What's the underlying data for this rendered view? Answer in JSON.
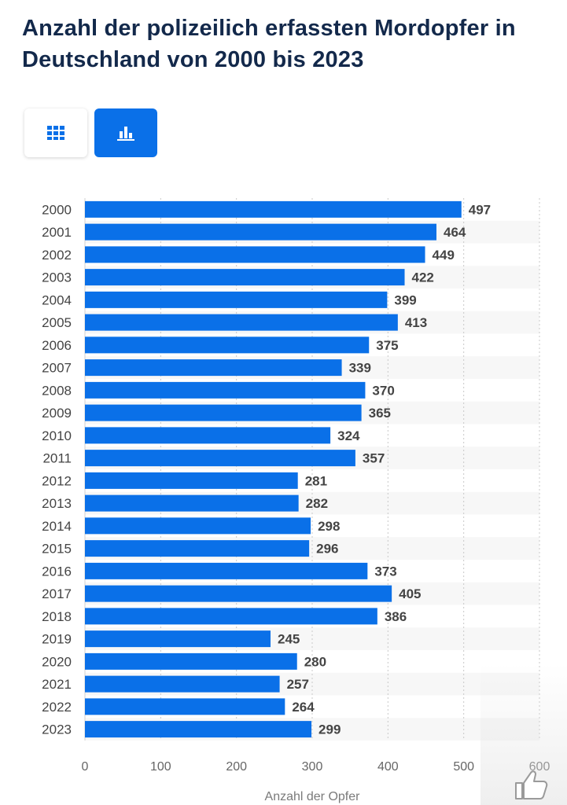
{
  "title": "Anzahl der polizeilich erfassten Mordopfer in Deutschland von 2000 bis 2023",
  "view_toggle": {
    "table_icon": "table-grid-icon",
    "chart_icon": "bar-chart-icon",
    "active": "chart"
  },
  "colors": {
    "bar": "#0a70e8",
    "title": "#13294b",
    "active_button": "#0a70e8"
  },
  "chart_data": {
    "type": "bar",
    "orientation": "horizontal",
    "categories": [
      "2000",
      "2001",
      "2002",
      "2003",
      "2004",
      "2005",
      "2006",
      "2007",
      "2008",
      "2009",
      "2010",
      "2011",
      "2012",
      "2013",
      "2014",
      "2015",
      "2016",
      "2017",
      "2018",
      "2019",
      "2020",
      "2021",
      "2022",
      "2023"
    ],
    "values": [
      497,
      464,
      449,
      422,
      399,
      413,
      375,
      339,
      370,
      365,
      324,
      357,
      281,
      282,
      298,
      296,
      373,
      405,
      386,
      245,
      280,
      257,
      264,
      299
    ],
    "title": "Anzahl der polizeilich erfassten Mordopfer in Deutschland von 2000 bis 2023",
    "xlabel": "Anzahl der Opfer",
    "ylabel": "",
    "xlim": [
      0,
      600
    ],
    "xticks": [
      0,
      100,
      200,
      300,
      400,
      500,
      600
    ],
    "grid": true,
    "data_labels": true
  },
  "footer_icon": "thumbs-up-icon"
}
